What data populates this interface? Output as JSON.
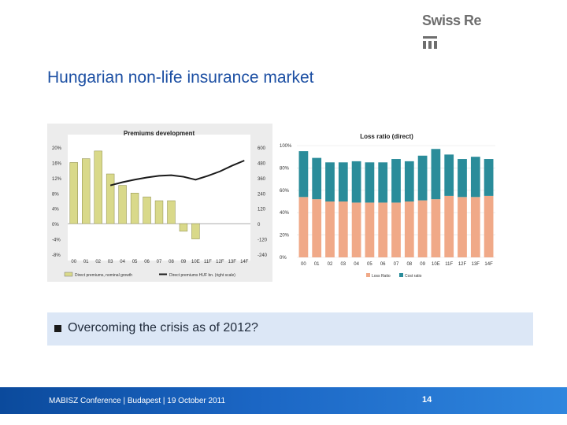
{
  "header": {
    "logo_text": "Swiss Re",
    "title": "Hungarian non-life insurance market"
  },
  "bullet": {
    "text": "Overcoming the crisis as of 2012?"
  },
  "footer": {
    "text": "MABISZ Conference | Budapest | 19 October 2011",
    "page": "14"
  },
  "colors": {
    "title_blue": "#1c4fa3",
    "bar_olive": "#d9d98a",
    "bar_salmon": "#f0a988",
    "bar_teal": "#2a8c9a"
  },
  "chart_data": [
    {
      "type": "bar",
      "title": "Premiums development",
      "categories": [
        "00",
        "01",
        "02",
        "03",
        "04",
        "05",
        "06",
        "07",
        "08",
        "09",
        "10E",
        "11F",
        "12F",
        "13F",
        "14F"
      ],
      "series": [
        {
          "name": "Direct premiums, nominal growth",
          "kind": "bar",
          "axis": "left",
          "values": [
            16,
            17,
            19,
            13,
            10,
            8,
            7,
            6,
            6,
            -2,
            -4,
            null,
            null,
            null,
            null
          ]
        },
        {
          "name": "Direct premiums HUF bn. (right scale)",
          "kind": "line",
          "axis": "right",
          "values": [
            null,
            null,
            null,
            300,
            325,
            345,
            362,
            375,
            380,
            368,
            345,
            375,
            410,
            455,
            495
          ]
        }
      ],
      "left_axis": {
        "ticks": [
          "20%",
          "16%",
          "12%",
          "8%",
          "4%",
          "0%",
          "-4%",
          "-8%"
        ],
        "range": [
          -8,
          20
        ]
      },
      "right_axis": {
        "ticks": [
          "600",
          "480",
          "360",
          "240",
          "120",
          "0",
          "-120",
          "-240"
        ],
        "range": [
          -240,
          600
        ]
      },
      "legend": [
        "Direct premiums, nominal growth",
        "Direct premiums HUF bn. (right scale)"
      ]
    },
    {
      "type": "bar",
      "stacked": true,
      "title": "Loss ratio (direct)",
      "categories": [
        "00",
        "01",
        "02",
        "03",
        "04",
        "05",
        "06",
        "07",
        "08",
        "09",
        "10E",
        "11F",
        "12F",
        "13F",
        "14F"
      ],
      "series": [
        {
          "name": "Loss Ratio",
          "values": [
            54,
            52,
            50,
            50,
            49,
            49,
            49,
            49,
            50,
            51,
            52,
            55,
            54,
            54,
            55
          ]
        },
        {
          "name": "Cost ratio",
          "values": [
            41,
            37,
            35,
            35,
            37,
            36,
            36,
            39,
            36,
            40,
            45,
            37,
            34,
            36,
            33
          ]
        }
      ],
      "y_axis": {
        "ticks": [
          "100%",
          "80%",
          "60%",
          "40%",
          "20%",
          "0%"
        ],
        "range": [
          0,
          100
        ]
      },
      "legend": [
        "Loss Ratio",
        "Cost ratio"
      ]
    }
  ]
}
